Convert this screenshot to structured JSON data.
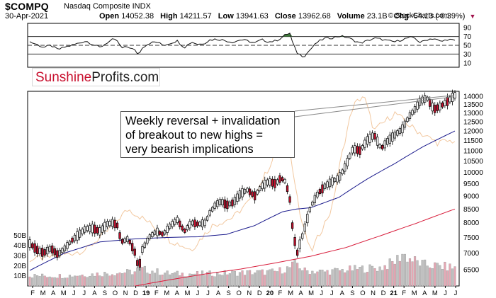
{
  "header": {
    "symbol": "$COMPQ",
    "exchange": "Nasdaq Composite  INDX",
    "date": "30-Apr-2021",
    "open_label": "Open",
    "open": "14052.38",
    "high_label": "High",
    "high": "14211.57",
    "low_label": "Low",
    "low": "13941.63",
    "close_label": "Close",
    "close": "13962.68",
    "volume_label": "Volume",
    "volume": "23.1B",
    "chg_label": "Chg",
    "chg": "-54.13 (-0.39%)",
    "copyright": "© StockCharts.com"
  },
  "logo": {
    "part1": "Sunshine",
    "part2": "Profits.com"
  },
  "annotation": {
    "line1": "Weekly reversal + invalidation",
    "line2": "of breakout to new highs =",
    "line3": "very bearish implications"
  },
  "colors": {
    "up_candle": "#ffffff",
    "down_candle": "#c8102e",
    "ma_blue": "#1a1a8c",
    "ma_red": "#d81e3c",
    "overlay": "#f2c8a0",
    "volume_up": "#c0c0c0",
    "volume_down": "#e6a6b3",
    "rsi_fill": "#3f7a3a"
  },
  "chart_data": [
    {
      "type": "line",
      "panel": "RSI",
      "yticks": [
        10,
        30,
        50,
        70,
        90
      ],
      "ylim": [
        0,
        100
      ],
      "reference_lines": [
        30,
        50,
        70
      ],
      "series": [
        {
          "x": [
            0,
            10,
            20,
            30,
            40,
            50,
            60,
            70,
            80,
            90,
            100,
            110,
            118,
            125,
            130,
            140,
            150,
            155,
            160,
            170,
            180,
            190,
            200,
            210,
            220,
            230,
            240,
            250,
            256,
            264,
            272,
            280,
            290,
            300,
            310,
            320,
            330,
            340,
            350,
            357,
            364,
            370,
            373,
            380,
            390,
            400,
            410,
            420,
            430,
            440,
            450,
            460,
            470,
            480,
            490,
            500,
            510,
            520,
            530,
            540,
            548,
            556,
            565,
            575,
            585,
            595,
            605
          ],
          "values": [
            58,
            52,
            45,
            50,
            40,
            46,
            50,
            55,
            60,
            52,
            45,
            56,
            63,
            60,
            43,
            47,
            38,
            28,
            45,
            55,
            58,
            50,
            55,
            60,
            45,
            58,
            52,
            56,
            62,
            64,
            63,
            60,
            57,
            63,
            60,
            55,
            63,
            58,
            60,
            66,
            74,
            78,
            60,
            33,
            24,
            42,
            58,
            66,
            67,
            71,
            69,
            62,
            55,
            60,
            66,
            64,
            60,
            58,
            63,
            68,
            66,
            56,
            63,
            66,
            58,
            64,
            60
          ]
        }
      ]
    },
    {
      "type": "candlestick",
      "panel": "Price",
      "yticks": [
        6500,
        7000,
        7500,
        8000,
        8500,
        9000,
        9500,
        10000,
        10500,
        11000,
        11500,
        12000,
        12500,
        13000,
        13500,
        14000
      ],
      "ylim": [
        6050,
        14300
      ],
      "y_scale": "log",
      "xticks": [
        "F",
        "M",
        "A",
        "M",
        "J",
        "J",
        "A",
        "S",
        "O",
        "N",
        "D",
        "19",
        "F",
        "M",
        "A",
        "M",
        "J",
        "J",
        "A",
        "S",
        "O",
        "N",
        "D",
        "20",
        "F",
        "M",
        "A",
        "M",
        "J",
        "J",
        "A",
        "S",
        "O",
        "N",
        "D",
        "21",
        "F",
        "M",
        "A",
        "M",
        "J",
        "J"
      ],
      "price_anchors": {
        "x": [
          0,
          10,
          20,
          30,
          40,
          50,
          60,
          70,
          80,
          90,
          100,
          110,
          118,
          125,
          130,
          140,
          150,
          155,
          160,
          170,
          180,
          190,
          200,
          210,
          220,
          230,
          240,
          250,
          256,
          264,
          272,
          280,
          290,
          300,
          310,
          320,
          330,
          340,
          350,
          357,
          364,
          370,
          373,
          380,
          390,
          400,
          410,
          420,
          430,
          440,
          450,
          460,
          470,
          480,
          490,
          500,
          510,
          520,
          530,
          540,
          548,
          556,
          565,
          575,
          585,
          595,
          605
        ],
        "values": [
          7300,
          7100,
          7000,
          7150,
          6950,
          7150,
          7400,
          7600,
          7800,
          7800,
          7700,
          7950,
          8000,
          7900,
          7350,
          7450,
          7000,
          6500,
          7100,
          7500,
          7700,
          7600,
          7900,
          8100,
          7700,
          8000,
          7950,
          8000,
          8350,
          8650,
          8800,
          8650,
          8750,
          9100,
          9250,
          9000,
          9400,
          9600,
          9500,
          9750,
          9600,
          8900,
          8000,
          6950,
          7700,
          8600,
          9100,
          9400,
          9600,
          9750,
          10300,
          11100,
          11000,
          11500,
          11800,
          11100,
          11500,
          11800,
          12100,
          12800,
          13200,
          13700,
          13900,
          13200,
          13400,
          13700,
          14050
        ]
      },
      "moving_averages": [
        {
          "color": "#1a1a8c",
          "x": [
            0,
            50,
            100,
            150,
            200,
            240,
            280,
            320,
            360,
            380,
            400,
            440,
            480,
            520,
            560,
            605
          ],
          "values": [
            6480,
            7000,
            7350,
            7450,
            7500,
            7520,
            7600,
            7900,
            8400,
            8500,
            8550,
            8950,
            9700,
            10400,
            11200,
            12000
          ]
        },
        {
          "color": "#d81e3c",
          "x": [
            150,
            200,
            250,
            300,
            350,
            400,
            450,
            500,
            550,
            605
          ],
          "values": [
            6050,
            6220,
            6380,
            6520,
            6700,
            6900,
            7170,
            7560,
            7980,
            8500
          ]
        }
      ],
      "overlay": {
        "color": "#f2c8a0",
        "x": [
          0,
          40,
          80,
          110,
          140,
          170,
          200,
          230,
          260,
          290,
          320,
          345,
          360,
          370,
          385,
          400,
          430,
          460,
          475,
          490,
          520,
          540,
          560,
          580,
          605
        ],
        "values": [
          6800,
          6900,
          7100,
          7700,
          8500,
          8000,
          7400,
          7100,
          7900,
          8200,
          9000,
          10500,
          13000,
          11000,
          8200,
          7000,
          8500,
          13400,
          14050,
          12000,
          13000,
          12300,
          11800,
          11400,
          11500
        ]
      }
    },
    {
      "type": "bar",
      "panel": "Volume",
      "yticks": [
        "10B",
        "20B",
        "30B",
        "40B",
        "50B"
      ],
      "ylim": [
        0,
        60
      ],
      "values_anchors": {
        "x": [
          0,
          50,
          100,
          150,
          155,
          200,
          250,
          300,
          350,
          370,
          380,
          390,
          420,
          470,
          500,
          520,
          530,
          540,
          560,
          605
        ],
        "values": [
          10,
          10,
          12,
          14,
          17,
          12,
          12,
          13,
          14,
          18,
          23,
          15,
          14,
          17,
          18,
          24,
          32,
          27,
          21,
          18
        ]
      }
    }
  ]
}
